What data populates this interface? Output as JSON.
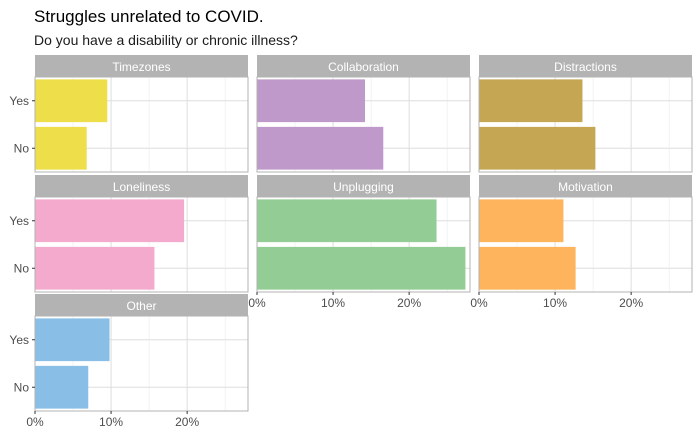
{
  "title": "Struggles unrelated to COVID.",
  "subtitle": "Do you have a disability or chronic illness?",
  "chart_data": {
    "type": "bar",
    "orientation": "horizontal",
    "faceted": true,
    "categories": [
      "Yes",
      "No"
    ],
    "x_ticks": [
      "0%",
      "10%",
      "20%"
    ],
    "xlim": [
      0,
      28
    ],
    "grid": true,
    "panels": [
      {
        "name": "Timezones",
        "values": [
          9.5,
          6.8
        ],
        "color": "#EEDF4A"
      },
      {
        "name": "Collaboration",
        "values": [
          14.2,
          16.6
        ],
        "color": "#BF99C9"
      },
      {
        "name": "Distractions",
        "values": [
          13.6,
          15.3
        ],
        "color": "#C4A653"
      },
      {
        "name": "Loneliness",
        "values": [
          19.6,
          15.7
        ],
        "color": "#F4AACC"
      },
      {
        "name": "Unplugging",
        "values": [
          23.6,
          27.4
        ],
        "color": "#93CD95"
      },
      {
        "name": "Motivation",
        "values": [
          11.1,
          12.7
        ],
        "color": "#FDB45C"
      },
      {
        "name": "Other",
        "values": [
          9.8,
          7.0
        ],
        "color": "#89BFE6"
      }
    ]
  }
}
